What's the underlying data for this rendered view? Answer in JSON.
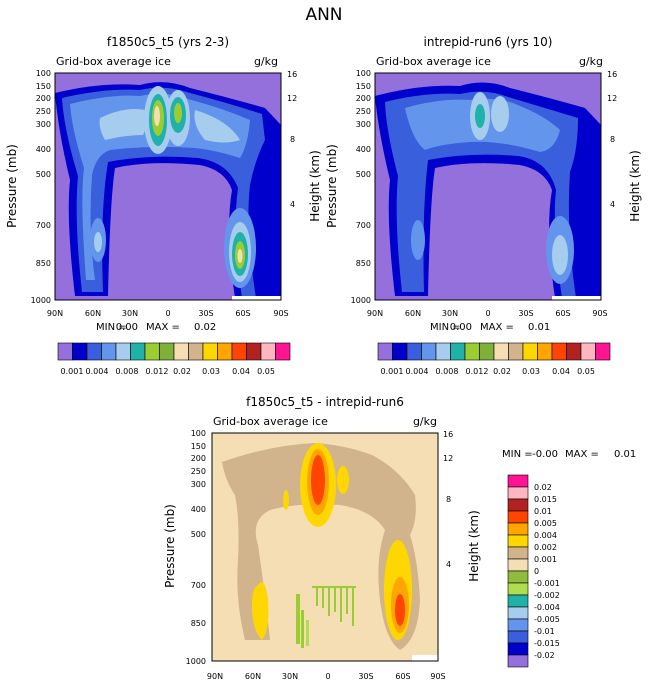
{
  "figure_title": "ANN",
  "chart_data": [
    {
      "type": "heatmap",
      "title": "f1850c5_t5 (yrs 2-3)",
      "left_label": "Grid-box average ice",
      "unit_label": "g/kg",
      "ylabel": "Pressure (mb)",
      "ylabel_right": "Height (km)",
      "x_ticks": [
        "90N",
        "60N",
        "30N",
        "0",
        "30S",
        "60S",
        "90S"
      ],
      "y_ticks": [
        "100",
        "150",
        "200",
        "250",
        "300",
        "400",
        "500",
        "700",
        "850",
        "1000"
      ],
      "y_right_ticks": [
        "16",
        "12",
        "8",
        "4"
      ],
      "min_label": "MIN =",
      "min_value": "0.00",
      "max_label": "MAX =",
      "max_value": "0.02",
      "colorbar_labels": [
        "0.001",
        "0.004",
        "0.008",
        "0.012",
        "0.02",
        "0.03",
        "0.04",
        "0.05"
      ]
    },
    {
      "type": "heatmap",
      "title": "intrepid-run6 (yrs 10)",
      "left_label": "Grid-box average ice",
      "unit_label": "g/kg",
      "ylabel": "Pressure (mb)",
      "ylabel_right": "Height (km)",
      "x_ticks": [
        "90N",
        "60N",
        "30N",
        "0",
        "30S",
        "60S",
        "90S"
      ],
      "y_ticks": [
        "100",
        "150",
        "200",
        "250",
        "300",
        "400",
        "500",
        "700",
        "850",
        "1000"
      ],
      "y_right_ticks": [
        "16",
        "12",
        "8",
        "4"
      ],
      "min_label": "MIN =",
      "min_value": "0.00",
      "max_label": "MAX =",
      "max_value": "0.01",
      "colorbar_labels": [
        "0.001",
        "0.004",
        "0.008",
        "0.012",
        "0.02",
        "0.03",
        "0.04",
        "0.05"
      ]
    },
    {
      "type": "heatmap",
      "title": "f1850c5_t5 - intrepid-run6",
      "left_label": "Grid-box average ice",
      "unit_label": "g/kg",
      "ylabel": "Pressure (mb)",
      "ylabel_right": "Height (km)",
      "x_ticks": [
        "90N",
        "60N",
        "30N",
        "0",
        "30S",
        "60S",
        "90S"
      ],
      "y_ticks": [
        "100",
        "150",
        "200",
        "250",
        "300",
        "400",
        "500",
        "700",
        "850",
        "1000"
      ],
      "y_right_ticks": [
        "16",
        "12",
        "8",
        "4"
      ],
      "min_label": "MIN =",
      "min_value": "-0.00",
      "max_label": "MAX =",
      "max_value": "0.01",
      "colorbar_labels": [
        "0.02",
        "0.015",
        "0.01",
        "0.005",
        "0.004",
        "0.002",
        "0.001",
        "0",
        "-0.001",
        "-0.002",
        "-0.004",
        "-0.005",
        "-0.01",
        "-0.015",
        "-0.02"
      ]
    }
  ],
  "colors": {
    "abs_scale": [
      "#9370db",
      "#0000cd",
      "#3a5fdc",
      "#6495ed",
      "#a6cdee",
      "#20b2aa",
      "#9acd32",
      "#7fb13a",
      "#f5deb3",
      "#d2b48c",
      "#ffd700",
      "#ffa500",
      "#ff4500",
      "#b22222",
      "#ffb6c1",
      "#ff1493"
    ],
    "diff_scale": [
      "#ff1493",
      "#ffb6c1",
      "#b22222",
      "#ff4500",
      "#ffa500",
      "#ffd700",
      "#d2b48c",
      "#f5deb3",
      "#8fbc3f",
      "#b0dc50",
      "#20b2aa",
      "#a6cdee",
      "#6495ed",
      "#3a5fdc",
      "#0000cd",
      "#9370db"
    ]
  }
}
